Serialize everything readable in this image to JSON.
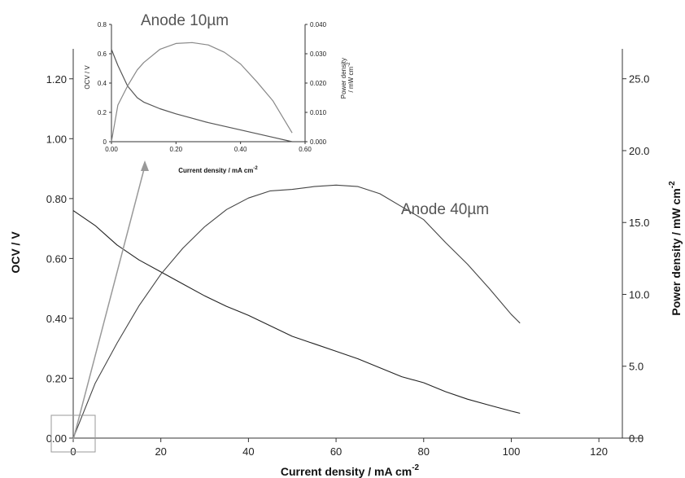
{
  "chart_data": [
    {
      "type": "line",
      "xlabel": "Current density / mA cm",
      "xlabel_sup": "-2",
      "ylabel": "OCV / V",
      "y2label": "Power density / mW cm",
      "y2label_sup": "-2",
      "xlim": [
        0,
        130
      ],
      "ylim": [
        0,
        1.3
      ],
      "y2lim": [
        0,
        27.08
      ],
      "xticks": [
        "0",
        "20",
        "40",
        "60",
        "80",
        "100",
        "120"
      ],
      "xtick_values": [
        0,
        20,
        40,
        60,
        80,
        100,
        120
      ],
      "yticks": [
        "0.00",
        "0.20",
        "0.40",
        "0.60",
        "0.80",
        "1.00",
        "1.20"
      ],
      "ytick_values": [
        0,
        0.2,
        0.4,
        0.6,
        0.8,
        1.0,
        1.2
      ],
      "y2ticks": [
        "0.0",
        "5.0",
        "10.0",
        "15.0",
        "20.0",
        "25.0"
      ],
      "y2tick_values": [
        0,
        5,
        10,
        15,
        20,
        25
      ],
      "annotation": "Anode 40µm",
      "series": [
        {
          "axis": "left",
          "color": "#222222",
          "x": [
            0,
            5,
            10,
            15,
            20,
            25,
            30,
            35,
            40,
            45,
            50,
            55,
            60,
            65,
            70,
            75,
            80,
            85,
            90,
            95,
            100,
            102
          ],
          "y": [
            0.76,
            0.71,
            0.645,
            0.595,
            0.555,
            0.515,
            0.475,
            0.44,
            0.41,
            0.375,
            0.34,
            0.315,
            0.29,
            0.265,
            0.235,
            0.205,
            0.185,
            0.155,
            0.13,
            0.11,
            0.09,
            0.083
          ]
        },
        {
          "axis": "right",
          "color": "#444444",
          "x": [
            0,
            5,
            10,
            15,
            20,
            25,
            30,
            35,
            40,
            45,
            50,
            55,
            60,
            65,
            70,
            75,
            80,
            85,
            90,
            95,
            100,
            102
          ],
          "y": [
            0,
            3.8,
            6.6,
            9.2,
            11.4,
            13.2,
            14.7,
            15.9,
            16.7,
            17.2,
            17.3,
            17.5,
            17.6,
            17.5,
            17.0,
            16.1,
            15.2,
            13.6,
            12.1,
            10.4,
            8.6,
            8.0
          ]
        }
      ]
    },
    {
      "type": "line",
      "annotation": "Anode 10µm",
      "xlabel": "Current density / mA cm",
      "xlabel_sup": "-2",
      "ylabel": "OCV / V",
      "y2label_lines": [
        "Power density",
        "/ mW cm"
      ],
      "y2label_sup": "-2",
      "xlim": [
        0,
        0.6
      ],
      "ylim": [
        0,
        0.8
      ],
      "y2lim": [
        0,
        0.04
      ],
      "xticks": [
        "0.00",
        "0.20",
        "0.40",
        "0.60"
      ],
      "xtick_values": [
        0,
        0.2,
        0.4,
        0.6
      ],
      "yticks": [
        "0",
        "0.2",
        "0.4",
        "0.6",
        "0.8"
      ],
      "ytick_values": [
        0,
        0.2,
        0.4,
        0.6,
        0.8
      ],
      "y2ticks": [
        "0.000",
        "0.010",
        "0.020",
        "0.030",
        "0.040"
      ],
      "y2tick_values": [
        0,
        0.01,
        0.02,
        0.03,
        0.04
      ],
      "series": [
        {
          "axis": "left",
          "color": "#555555",
          "x": [
            0,
            0.02,
            0.05,
            0.08,
            0.1,
            0.15,
            0.2,
            0.25,
            0.3,
            0.35,
            0.4,
            0.45,
            0.5,
            0.56
          ],
          "y": [
            0.63,
            0.52,
            0.38,
            0.3,
            0.27,
            0.225,
            0.19,
            0.16,
            0.13,
            0.105,
            0.08,
            0.055,
            0.03,
            0.0
          ]
        },
        {
          "axis": "right",
          "color": "#888888",
          "x": [
            0,
            0.02,
            0.05,
            0.08,
            0.1,
            0.15,
            0.2,
            0.25,
            0.3,
            0.35,
            0.4,
            0.45,
            0.5,
            0.56
          ],
          "y": [
            0,
            0.0125,
            0.019,
            0.0245,
            0.027,
            0.0315,
            0.0335,
            0.0338,
            0.033,
            0.0305,
            0.0265,
            0.0205,
            0.014,
            0.003
          ]
        }
      ]
    }
  ]
}
